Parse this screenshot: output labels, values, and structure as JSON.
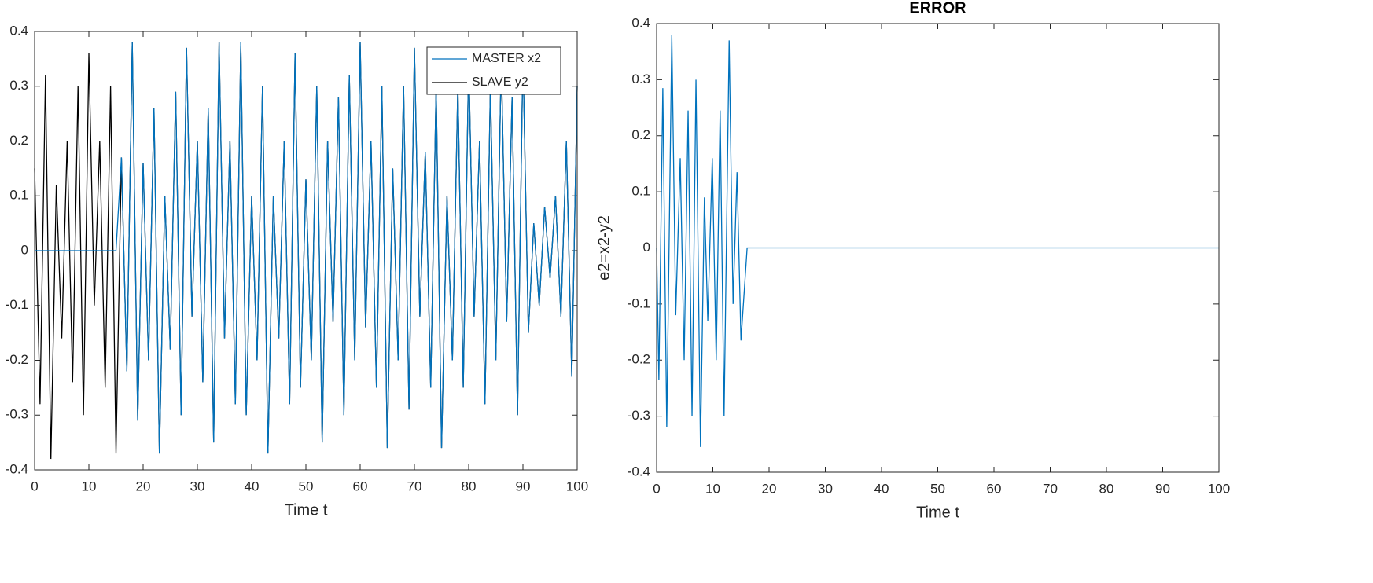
{
  "chart_data": [
    {
      "type": "line",
      "xlabel": "Time t",
      "legend": "upper right",
      "xlim": [
        0,
        100
      ],
      "ylim": [
        -0.4,
        0.4
      ],
      "xticks": [
        0,
        10,
        20,
        30,
        40,
        50,
        60,
        70,
        80,
        90,
        100
      ],
      "yticks": [
        -0.4,
        -0.3,
        -0.2,
        -0.1,
        0,
        0.1,
        0.2,
        0.3,
        0.4
      ],
      "series": [
        {
          "name": "MASTER x2",
          "color": "#0072bd",
          "x": [
            0,
            15,
            16,
            17,
            18,
            19,
            20,
            21,
            22,
            23,
            24,
            25,
            26,
            27,
            28,
            29,
            30,
            31,
            32,
            33,
            34,
            35,
            36,
            37,
            38,
            39,
            40,
            41,
            42,
            43,
            44,
            45,
            46,
            47,
            48,
            49,
            50,
            51,
            52,
            53,
            54,
            55,
            56,
            57,
            58,
            59,
            60,
            61,
            62,
            63,
            64,
            65,
            66,
            67,
            68,
            69,
            70,
            71,
            72,
            73,
            74,
            75,
            76,
            77,
            78,
            79,
            80,
            81,
            82,
            83,
            84,
            85,
            86,
            87,
            88,
            89,
            90,
            91,
            92,
            93,
            94,
            95,
            96,
            97,
            98,
            99,
            100
          ],
          "values": [
            0,
            0,
            0.17,
            -0.22,
            0.38,
            -0.31,
            0.16,
            -0.2,
            0.26,
            -0.37,
            0.1,
            -0.18,
            0.29,
            -0.3,
            0.37,
            -0.12,
            0.2,
            -0.24,
            0.26,
            -0.35,
            0.38,
            -0.16,
            0.2,
            -0.28,
            0.38,
            -0.3,
            0.1,
            -0.2,
            0.3,
            -0.37,
            0.1,
            -0.16,
            0.2,
            -0.28,
            0.36,
            -0.25,
            0.13,
            -0.2,
            0.3,
            -0.35,
            0.2,
            -0.13,
            0.28,
            -0.3,
            0.32,
            -0.2,
            0.38,
            -0.14,
            0.2,
            -0.25,
            0.3,
            -0.36,
            0.15,
            -0.2,
            0.3,
            -0.29,
            0.37,
            -0.12,
            0.18,
            -0.25,
            0.3,
            -0.36,
            0.1,
            -0.2,
            0.3,
            -0.25,
            0.35,
            -0.12,
            0.2,
            -0.28,
            0.3,
            -0.2,
            0.35,
            -0.13,
            0.28,
            -0.3,
            0.36,
            -0.15,
            0.05,
            -0.1,
            0.08,
            -0.05,
            0.1,
            -0.12,
            0.2,
            -0.23,
            0.3
          ]
        },
        {
          "name": "SLAVE y2",
          "color": "#000000",
          "x": [
            0,
            1,
            2,
            3,
            4,
            5,
            6,
            7,
            8,
            9,
            10,
            11,
            12,
            13,
            14,
            15,
            16,
            17,
            18,
            19,
            20,
            21,
            22,
            23,
            24,
            25,
            26,
            27,
            28,
            29,
            30,
            31,
            32,
            33,
            34,
            35,
            36,
            37,
            38,
            39,
            40,
            41,
            42,
            43,
            44,
            45,
            46,
            47,
            48,
            49,
            50,
            51,
            52,
            53,
            54,
            55,
            56,
            57,
            58,
            59,
            60,
            61,
            62,
            63,
            64,
            65,
            66,
            67,
            68,
            69,
            70,
            71,
            72,
            73,
            74,
            75,
            76,
            77,
            78,
            79,
            80,
            81,
            82,
            83,
            84,
            85,
            86,
            87,
            88,
            89,
            90,
            91,
            92,
            93,
            94,
            95,
            96,
            97,
            98,
            99,
            100
          ],
          "values": [
            0.15,
            -0.28,
            0.32,
            -0.38,
            0.12,
            -0.16,
            0.2,
            -0.24,
            0.3,
            -0.3,
            0.36,
            -0.1,
            0.2,
            -0.25,
            0.3,
            -0.37,
            0.17,
            -0.22,
            0.38,
            -0.31,
            0.16,
            -0.2,
            0.26,
            -0.37,
            0.1,
            -0.18,
            0.29,
            -0.3,
            0.37,
            -0.12,
            0.2,
            -0.24,
            0.26,
            -0.35,
            0.38,
            -0.16,
            0.2,
            -0.28,
            0.38,
            -0.3,
            0.1,
            -0.2,
            0.3,
            -0.37,
            0.1,
            -0.16,
            0.2,
            -0.28,
            0.36,
            -0.25,
            0.13,
            -0.2,
            0.3,
            -0.35,
            0.2,
            -0.13,
            0.28,
            -0.3,
            0.32,
            -0.2,
            0.38,
            -0.14,
            0.2,
            -0.25,
            0.3,
            -0.36,
            0.15,
            -0.2,
            0.3,
            -0.29,
            0.37,
            -0.12,
            0.18,
            -0.25,
            0.3,
            -0.36,
            0.1,
            -0.2,
            0.3,
            -0.25,
            0.35,
            -0.12,
            0.2,
            -0.28,
            0.3,
            -0.2,
            0.35,
            -0.13,
            0.28,
            -0.3,
            0.36,
            -0.15,
            0.05,
            -0.1,
            0.08,
            -0.05,
            0.1,
            -0.12,
            0.2,
            -0.23,
            0.3
          ]
        }
      ]
    },
    {
      "type": "line",
      "title": "ERROR",
      "xlabel": "Time t",
      "ylabel": "e2=x2-y2",
      "xlim": [
        0,
        100
      ],
      "ylim": [
        -0.4,
        0.4
      ],
      "xticks": [
        0,
        10,
        20,
        30,
        40,
        50,
        60,
        70,
        80,
        90,
        100
      ],
      "yticks": [
        -0.4,
        -0.3,
        -0.2,
        -0.1,
        0,
        0.1,
        0.2,
        0.3,
        0.4
      ],
      "series": [
        {
          "color": "#0072bd",
          "x": [
            0,
            0.4,
            1.1,
            1.8,
            2.7,
            3.4,
            4.2,
            4.9,
            5.6,
            6.3,
            7.0,
            7.8,
            8.5,
            9.1,
            9.9,
            10.6,
            11.3,
            12.0,
            12.9,
            13.6,
            14.3,
            15.0,
            16.1,
            100
          ],
          "values": [
            0,
            -0.235,
            0.285,
            -0.32,
            0.38,
            -0.12,
            0.16,
            -0.2,
            0.245,
            -0.3,
            0.3,
            -0.355,
            0.09,
            -0.13,
            0.16,
            -0.2,
            0.245,
            -0.3,
            0.37,
            -0.1,
            0.135,
            -0.165,
            0,
            0
          ]
        }
      ]
    }
  ]
}
